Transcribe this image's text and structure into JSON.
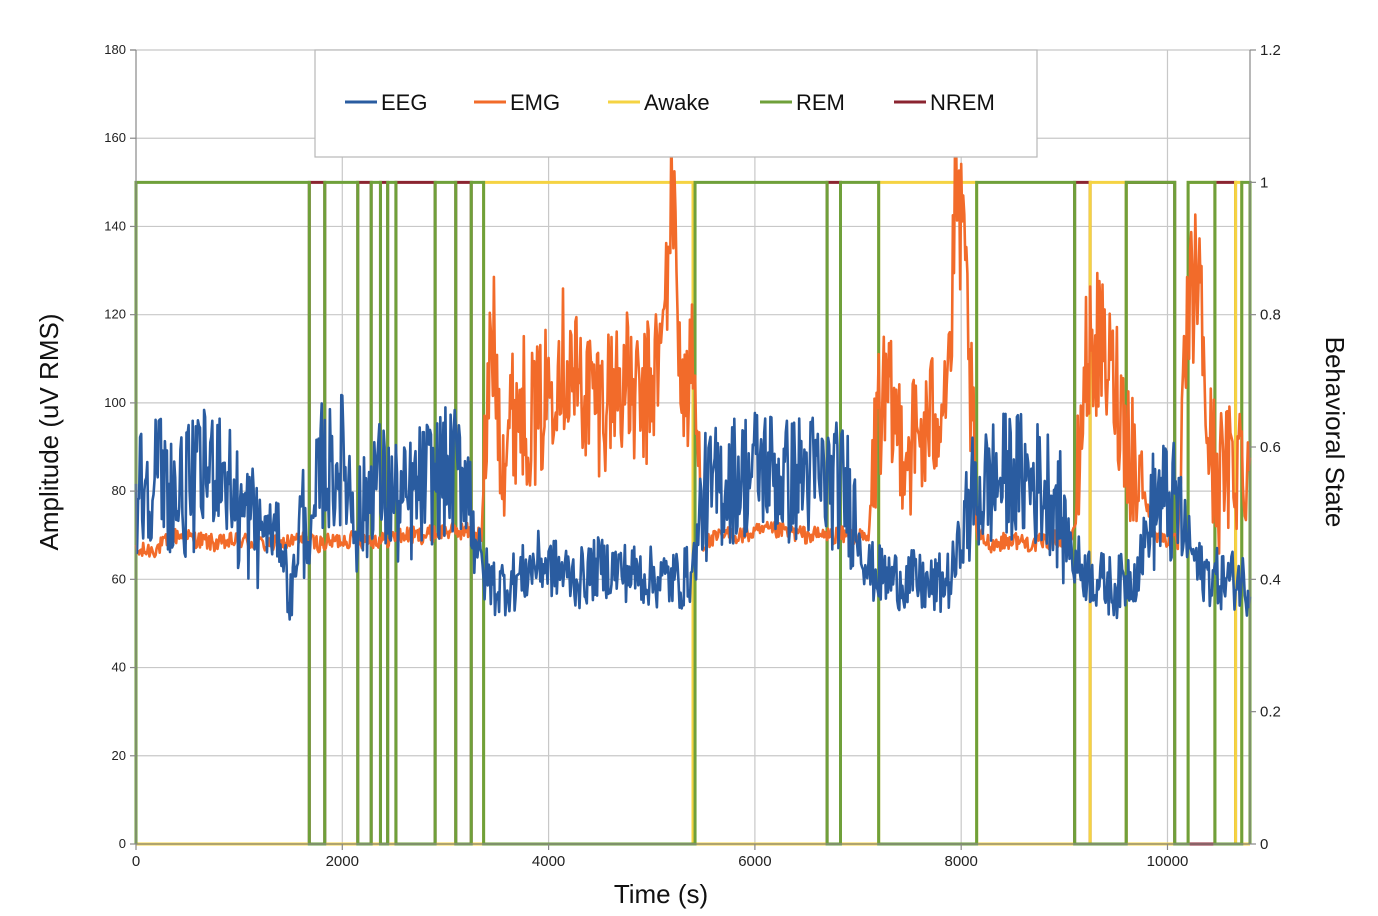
{
  "chart_data": {
    "type": "line",
    "xlabel": "Time (s)",
    "ylabel_left": "Amplitude  (uV  RMS)",
    "ylabel_right": "Behavioral  State",
    "xlim": [
      0,
      10800
    ],
    "ylim_left": [
      0,
      180
    ],
    "ylim_right": [
      0,
      1.2
    ],
    "x_ticks": [
      0,
      2000,
      4000,
      6000,
      8000,
      10000
    ],
    "y_left_ticks": [
      0,
      20,
      40,
      60,
      80,
      100,
      120,
      140,
      160,
      180
    ],
    "y_right_ticks": [
      0,
      0.2,
      0.4,
      0.6,
      0.8,
      1,
      1.2
    ],
    "grid": true,
    "legend_position": "top-center",
    "series": [
      {
        "name": "EEG",
        "color": "#2A5CA0",
        "axis": "left",
        "x": [
          0,
          200,
          400,
          600,
          800,
          1000,
          1200,
          1400,
          1500,
          1600,
          1700,
          1800,
          1900,
          2000,
          2100,
          2200,
          2300,
          2400,
          2600,
          2800,
          3000,
          3200,
          3350,
          3500,
          3700,
          3900,
          4100,
          4300,
          4500,
          4700,
          4900,
          5100,
          5300,
          5400,
          5500,
          5700,
          5900,
          6100,
          6300,
          6500,
          6700,
          6900,
          7100,
          7300,
          7500,
          7700,
          7900,
          8100,
          8300,
          8500,
          8700,
          8900,
          9100,
          9300,
          9500,
          9700,
          9900,
          10100,
          10300,
          10500,
          10700,
          10800
        ],
        "values": [
          80,
          85,
          78,
          82,
          88,
          75,
          72,
          70,
          55,
          74,
          68,
          86,
          84,
          88,
          78,
          72,
          85,
          80,
          76,
          82,
          84,
          85,
          62,
          58,
          60,
          64,
          62,
          60,
          63,
          62,
          61,
          60,
          60,
          62,
          78,
          82,
          84,
          86,
          82,
          84,
          82,
          80,
          62,
          60,
          60,
          58,
          60,
          78,
          82,
          84,
          82,
          80,
          64,
          60,
          58,
          62,
          78,
          76,
          62,
          60,
          60,
          58
        ]
      },
      {
        "name": "EMG",
        "color": "#F26B2A",
        "axis": "left",
        "x": [
          0,
          200,
          400,
          600,
          800,
          1000,
          1200,
          1400,
          1600,
          1800,
          2000,
          2200,
          2400,
          2600,
          2800,
          3000,
          3200,
          3350,
          3450,
          3550,
          3700,
          3900,
          4100,
          4300,
          4500,
          4700,
          4900,
          5100,
          5200,
          5300,
          5400,
          5500,
          5700,
          5900,
          6100,
          6300,
          6500,
          6700,
          6900,
          7100,
          7200,
          7300,
          7500,
          7700,
          7900,
          7950,
          8050,
          8150,
          8300,
          8500,
          8700,
          8900,
          9100,
          9200,
          9300,
          9500,
          9700,
          9900,
          10100,
          10200,
          10300,
          10400,
          10500,
          10700,
          10800
        ],
        "values": [
          66,
          67,
          70,
          69,
          68,
          69,
          68,
          68,
          69,
          68,
          69,
          69,
          69,
          70,
          70,
          71,
          71,
          70,
          118,
          90,
          100,
          96,
          112,
          104,
          100,
          106,
          98,
          112,
          150,
          100,
          108,
          68,
          70,
          70,
          71,
          71,
          70,
          70,
          70,
          69,
          100,
          98,
          90,
          94,
          112,
          150,
          125,
          70,
          68,
          69,
          68,
          69,
          70,
          108,
          114,
          104,
          84,
          70,
          68,
          120,
          130,
          90,
          82,
          88,
          86
        ]
      }
    ],
    "state_series": [
      {
        "name": "Awake",
        "color": "#F5D342",
        "axis": "right",
        "on_intervals": [
          [
            3370,
            5400
          ],
          [
            7200,
            8150
          ],
          [
            9250,
            9600
          ],
          [
            10200,
            10460
          ],
          [
            10660,
            10720
          ]
        ]
      },
      {
        "name": "REM",
        "color": "#6FA03A",
        "axis": "right",
        "on_intervals": [
          [
            0,
            1680
          ],
          [
            1830,
            2150
          ],
          [
            2280,
            2370
          ],
          [
            2440,
            2520
          ],
          [
            2900,
            3100
          ],
          [
            3250,
            3370
          ],
          [
            5420,
            6700
          ],
          [
            6830,
            7200
          ],
          [
            8150,
            9100
          ],
          [
            9600,
            10070
          ],
          [
            10200,
            10460
          ],
          [
            10720,
            10800
          ]
        ]
      },
      {
        "name": "NREM",
        "color": "#8B2430",
        "axis": "right",
        "on_intervals": [
          [
            1680,
            1830
          ],
          [
            2150,
            2280
          ],
          [
            2370,
            2440
          ],
          [
            2520,
            2900
          ],
          [
            3100,
            3250
          ],
          [
            6700,
            6830
          ],
          [
            9100,
            9250
          ],
          [
            9600,
            10070
          ],
          [
            10460,
            10660
          ]
        ]
      }
    ]
  }
}
